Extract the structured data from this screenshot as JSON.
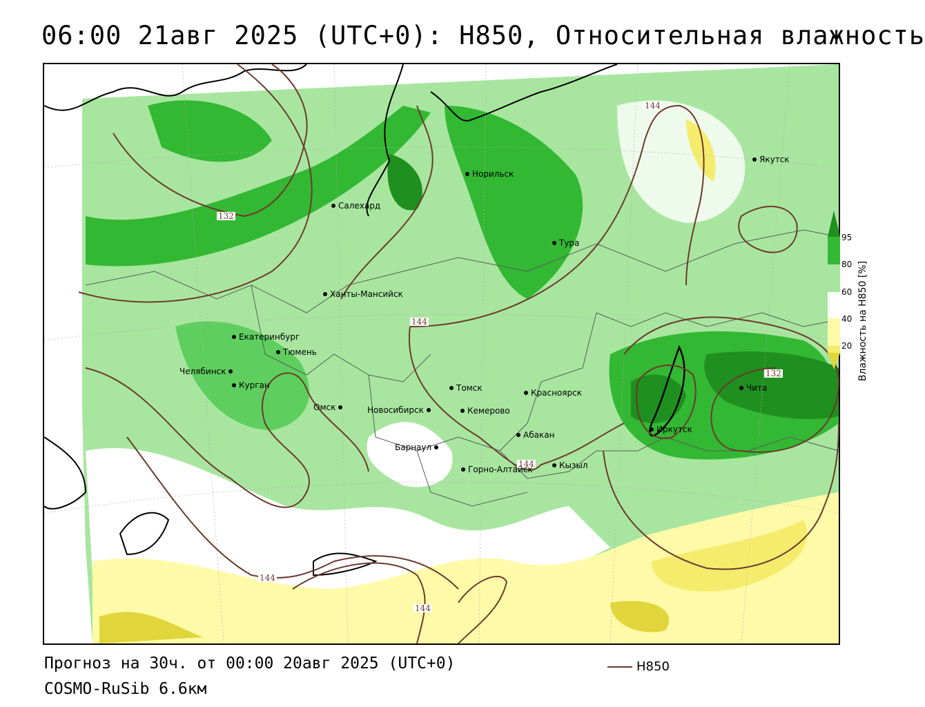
{
  "header": {
    "title": "06:00 21авг 2025 (UTC+0): H850, Относительная влажность"
  },
  "footer": {
    "forecast": "Прогноз на 30ч. от 00:00 20авг 2025 (UTC+0)",
    "model": "COSMO-RuSib 6.6км"
  },
  "legend": {
    "line_label": "H850",
    "line_color": "#6b3a2c"
  },
  "colorbar": {
    "title": "Влажность на H850 [%]",
    "ticks": [
      "95",
      "80",
      "60",
      "40",
      "20"
    ],
    "colors": {
      "c95": "#1f8f1f",
      "c80": "#33b833",
      "c60": "#5ecf5e",
      "c40": "#a8e6a0",
      "c20": "#ffffff",
      "y40": "#fffaa8",
      "y20": "#f5ec6e",
      "y10": "#e0d63c"
    }
  },
  "contours": {
    "labels": [
      "144",
      "132",
      "144",
      "144",
      "144",
      "144",
      "132"
    ]
  },
  "cities": [
    {
      "name": "Якутск"
    },
    {
      "name": "Норильск"
    },
    {
      "name": "Салехард"
    },
    {
      "name": "Тура"
    },
    {
      "name": "Ханты-Мансийск"
    },
    {
      "name": "Екатеринбург"
    },
    {
      "name": "Тюмень"
    },
    {
      "name": "Челябинск"
    },
    {
      "name": "Курган"
    },
    {
      "name": "Омск"
    },
    {
      "name": "Новосибирск"
    },
    {
      "name": "Томск"
    },
    {
      "name": "Кемерово"
    },
    {
      "name": "Красноярск"
    },
    {
      "name": "Барнаул"
    },
    {
      "name": "Абакан"
    },
    {
      "name": "Горно-Алтайск"
    },
    {
      "name": "Кызыл"
    },
    {
      "name": "Иркутск"
    },
    {
      "name": "Чита"
    }
  ]
}
